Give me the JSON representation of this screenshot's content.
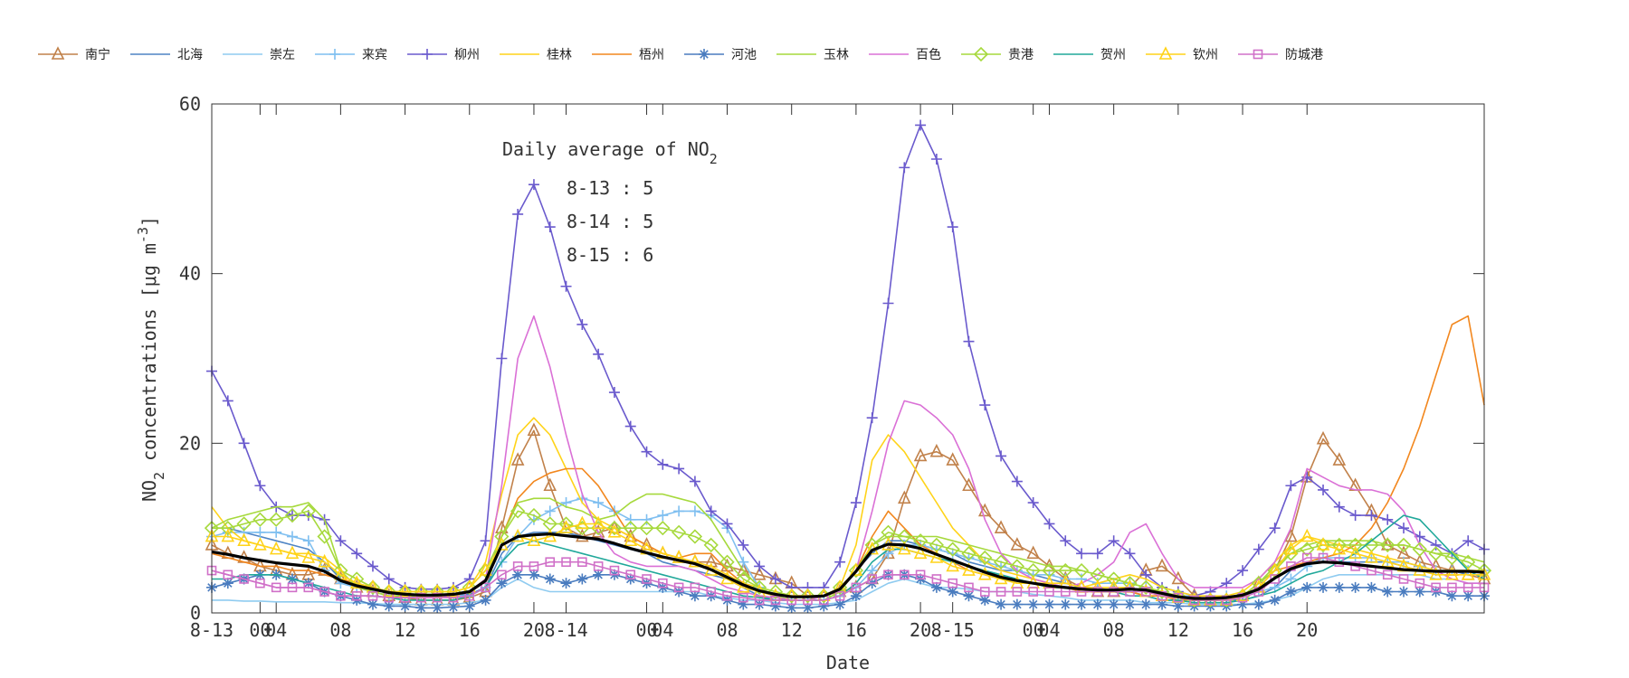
{
  "chart_data": {
    "type": "line",
    "xlabel": "Date",
    "ylabel": "NO",
    "ylabel_sub": "2",
    "ylabel_tail": " concentrations [μg m",
    "ylabel_sup": "-3",
    "ylabel_end": "]",
    "ylim": [
      0,
      60
    ],
    "y_ticks": [
      "0",
      "20",
      "40",
      "60"
    ],
    "x_ticks": [
      "8-13",
      "00",
      "04",
      "08",
      "12",
      "16",
      "20",
      "8-14",
      "00",
      "04",
      "08",
      "12",
      "16",
      "20",
      "8-15",
      "00",
      "04",
      "08",
      "12",
      "16",
      "20"
    ],
    "x_tick_hours": [
      0,
      3,
      4,
      8,
      12,
      16,
      20,
      22,
      27,
      28,
      32,
      36,
      40,
      44,
      46,
      51,
      52,
      56,
      60,
      64,
      68
    ],
    "x_range_hours": [
      0,
      79
    ],
    "annotation": {
      "title": "Daily average of NO",
      "title_sub": "2",
      "lines": [
        "8-13 : 5",
        "8-14 : 5",
        "8-15 : 6"
      ]
    },
    "series": [
      {
        "name": "南宁",
        "color": "#c1814a",
        "marker": "triangle",
        "values": [
          8,
          7,
          6.5,
          5.5,
          5,
          4.5,
          4.5,
          5,
          4,
          3,
          2.5,
          2,
          1.8,
          1.5,
          1.5,
          1.5,
          1.8,
          2.5,
          10,
          18,
          21.5,
          15,
          10,
          9,
          9.5,
          10,
          9,
          8,
          7,
          6.5,
          6,
          6,
          5.5,
          5,
          4.5,
          4,
          3.5,
          2,
          2,
          2.5,
          3,
          4,
          7,
          13.5,
          18.5,
          19,
          18,
          15,
          12,
          10,
          8,
          7,
          5.5,
          4,
          3,
          2.5,
          2.5,
          3,
          5,
          5.5,
          4,
          2,
          1.5,
          1.5,
          2,
          3.5,
          5,
          9,
          16,
          20.5,
          18,
          15,
          12,
          8,
          7,
          6,
          5.5,
          5,
          4.5,
          4
        ]
      },
      {
        "name": "北海",
        "color": "#4e84c4",
        "marker": "none",
        "values": [
          10,
          10,
          9.5,
          9,
          8.5,
          8,
          7.5,
          6,
          4,
          3,
          2.5,
          2,
          2,
          1.8,
          1.8,
          2,
          2.2,
          3,
          7,
          9,
          9.5,
          9.5,
          9.5,
          9,
          8.5,
          8,
          7.5,
          7,
          6,
          5.5,
          5,
          4.5,
          4,
          3,
          2,
          1.5,
          1.5,
          1.5,
          2,
          3,
          5,
          7,
          8.5,
          8.5,
          8,
          7.5,
          7,
          6,
          5.5,
          5,
          5,
          4.5,
          4,
          3.5,
          3,
          3,
          2.5,
          2.5,
          2,
          1.5,
          1.5,
          1.5,
          1.5,
          1.5,
          1.5,
          2,
          3,
          5,
          6,
          6.5,
          6,
          6,
          6,
          6,
          5.5,
          5,
          5,
          5,
          4.5,
          4.5
        ]
      },
      {
        "name": "崇左",
        "color": "#8fcbf0",
        "marker": "none",
        "values": [
          1.5,
          1.5,
          1.4,
          1.4,
          1.3,
          1.3,
          1.3,
          1.3,
          1.2,
          1.2,
          1.1,
          1,
          1,
          1,
          1,
          1,
          1.2,
          1.5,
          3,
          4,
          3,
          2.5,
          2.5,
          2.5,
          2.5,
          2.5,
          2.5,
          2.5,
          2.5,
          2.5,
          2.5,
          2,
          1.8,
          1.5,
          1.5,
          1.2,
          1,
          1,
          1,
          1.2,
          1.5,
          2.5,
          3.5,
          4,
          3.5,
          3,
          3,
          2.8,
          2.5,
          2.5,
          2.5,
          2.2,
          2,
          1.8,
          1.5,
          1.5,
          1.5,
          1.5,
          1.2,
          1.2,
          1.2,
          1,
          1,
          1,
          1,
          1.2,
          1.5,
          2,
          3,
          4,
          4.5,
          4.5,
          4.5,
          4.5,
          4.5,
          4.5,
          4,
          4,
          3.5,
          3.5
        ]
      },
      {
        "name": "来宾",
        "color": "#7fbff0",
        "marker": "plus",
        "values": [
          9,
          9.5,
          9.5,
          9.5,
          9.5,
          9,
          8.5,
          5,
          3.5,
          3,
          2.5,
          2,
          2,
          2,
          2,
          2,
          2,
          3,
          6,
          9,
          11,
          12,
          13,
          13.5,
          13,
          12,
          11,
          11,
          11.5,
          12,
          12,
          11.5,
          10,
          6,
          3,
          2,
          1.5,
          1.5,
          1.5,
          2,
          3,
          5,
          7,
          8,
          8,
          7.5,
          7,
          6.5,
          6,
          5.5,
          5,
          4.5,
          4.5,
          4,
          4,
          3.5,
          3.5,
          3.5,
          3,
          2.5,
          2,
          2,
          2,
          2,
          2,
          2.5,
          3,
          4,
          5.5,
          6.5,
          6.5,
          6.5,
          6.5,
          6,
          6,
          5.5,
          5,
          5,
          5,
          5
        ]
      },
      {
        "name": "柳州",
        "color": "#6a5acd",
        "marker": "plus",
        "values": [
          28.5,
          25,
          20,
          15,
          12.5,
          11.5,
          11.5,
          11,
          8.5,
          7,
          5.5,
          4,
          3,
          2.8,
          2.8,
          3,
          4,
          8.5,
          30,
          47,
          50.5,
          45.5,
          38.5,
          34,
          30.5,
          26,
          22,
          19,
          17.5,
          17,
          15.5,
          12,
          10.5,
          8,
          5.5,
          4,
          3,
          3,
          3,
          6,
          13,
          23,
          36.5,
          52.5,
          57.5,
          53.5,
          45.5,
          32,
          24.5,
          18.5,
          15.5,
          13,
          10.5,
          8.5,
          7,
          7,
          8.5,
          7,
          4.5,
          3,
          2.5,
          2,
          2.5,
          3.5,
          5,
          7.5,
          10,
          15,
          16,
          14.5,
          12.5,
          11.5,
          11.5,
          11,
          10,
          9,
          8,
          7,
          8.5,
          7.5
        ]
      },
      {
        "name": "桂林",
        "color": "#ffd319",
        "marker": "none",
        "values": [
          12.5,
          10,
          8.5,
          8,
          7.5,
          7,
          7,
          6.5,
          5,
          4,
          3,
          2.5,
          2.5,
          2.5,
          2.5,
          2.5,
          3,
          6,
          14,
          21,
          23,
          21,
          17,
          13,
          11,
          10,
          9,
          8,
          7,
          6.5,
          6,
          5.5,
          4.5,
          3.5,
          3,
          2.5,
          2,
          2,
          2,
          3,
          8,
          18,
          21,
          19,
          16,
          13,
          10,
          8,
          6,
          5,
          4.5,
          4,
          3.5,
          3,
          3,
          3.5,
          4,
          4.5,
          4,
          3,
          2.5,
          2,
          2,
          2,
          2.5,
          4,
          6,
          8,
          9,
          8.5,
          8,
          7.5,
          7,
          6.5,
          6,
          5.5,
          5,
          5,
          5,
          5
        ]
      },
      {
        "name": "梧州",
        "color": "#f2871e",
        "marker": "none",
        "values": [
          7,
          6.5,
          6,
          5.5,
          5.5,
          5,
          5,
          4.5,
          4,
          3.5,
          3,
          2.5,
          2.2,
          2,
          2,
          2,
          2.5,
          4,
          9,
          13.5,
          15.5,
          16.5,
          17,
          17,
          15,
          12,
          9,
          8,
          7,
          6.5,
          7,
          7,
          5,
          3.5,
          2.5,
          2,
          2,
          2,
          2,
          3,
          5,
          9,
          12,
          10,
          8,
          7,
          6,
          5,
          4.5,
          4,
          3.5,
          3.5,
          3,
          3,
          2.5,
          2.5,
          2.5,
          2.5,
          2,
          2,
          1.5,
          1.5,
          1.5,
          1.5,
          2,
          3,
          5,
          5.5,
          6,
          6.5,
          7,
          8,
          10,
          13,
          17,
          22,
          28,
          34,
          35,
          24.5
        ]
      },
      {
        "name": "河池",
        "color": "#4a7cbf",
        "marker": "asterisk",
        "values": [
          3,
          3.5,
          4,
          4.5,
          4.5,
          4,
          3.5,
          2.5,
          2,
          1.5,
          1,
          0.8,
          0.8,
          0.6,
          0.6,
          0.7,
          0.8,
          1.5,
          3.5,
          4.5,
          4.5,
          4,
          3.5,
          4,
          4.5,
          4.5,
          4,
          3.5,
          3,
          2.5,
          2,
          2,
          1.5,
          1,
          1,
          0.8,
          0.6,
          0.6,
          0.8,
          1,
          2,
          3.5,
          4.5,
          4.5,
          4,
          3,
          2.5,
          2,
          1.5,
          1,
          1,
          1,
          1,
          1,
          1,
          1,
          1,
          1,
          1,
          1,
          0.8,
          0.8,
          0.8,
          0.8,
          1,
          1,
          1.5,
          2.5,
          3,
          3,
          3,
          3,
          3,
          2.5,
          2.5,
          2.5,
          2.5,
          2,
          2,
          2
        ]
      },
      {
        "name": "玉林",
        "color": "#a6d93c",
        "marker": "none",
        "values": [
          10,
          11,
          11.5,
          12,
          12.5,
          12.5,
          13,
          11,
          5,
          3,
          2.5,
          2,
          2,
          2,
          2,
          2,
          2.5,
          4,
          9,
          13,
          13.5,
          13.5,
          12.5,
          12,
          11,
          11.5,
          13,
          14,
          14,
          13.5,
          13,
          11,
          8,
          5,
          3,
          2,
          1.5,
          1.5,
          1.5,
          2.5,
          5,
          8,
          9,
          9,
          9,
          9,
          8.5,
          8,
          7.5,
          7,
          6.5,
          6,
          5.5,
          5.5,
          5,
          4.5,
          4,
          3.5,
          3,
          2.5,
          2,
          1.5,
          1.5,
          1.5,
          2,
          3.5,
          5.5,
          7,
          8,
          8.5,
          8.5,
          8.5,
          8.5,
          8,
          8,
          7.5,
          7,
          7,
          6.5,
          6
        ]
      },
      {
        "name": "百色",
        "color": "#da70d6",
        "marker": "none",
        "values": [
          5,
          4.5,
          4,
          3.5,
          3,
          3,
          3,
          2.5,
          2,
          2,
          2,
          1.8,
          1.8,
          1.8,
          1.8,
          2,
          2.5,
          4,
          15,
          30,
          35,
          29,
          21,
          14,
          9.5,
          7,
          6,
          5.5,
          5.5,
          5.5,
          5,
          4,
          3,
          2.5,
          2,
          1.8,
          1.5,
          1.5,
          2,
          3,
          5,
          12,
          20,
          25,
          24.5,
          23,
          21,
          17,
          11,
          7,
          5,
          4,
          3.5,
          3,
          3.5,
          4.5,
          6,
          9.5,
          10.5,
          7,
          4,
          3,
          3,
          3,
          3,
          4,
          6,
          10,
          17,
          16,
          15,
          14.5,
          14.5,
          14,
          12,
          8,
          5,
          4,
          3.5,
          3.5
        ]
      },
      {
        "name": "贵港",
        "color": "#a6d93c",
        "marker": "diamond",
        "values": [
          10,
          10,
          10.5,
          11,
          11,
          11.5,
          12,
          9,
          5,
          4,
          3,
          2.5,
          2.5,
          2.5,
          2.5,
          2.5,
          3,
          5,
          9,
          12,
          11.5,
          10.5,
          10.5,
          10,
          10,
          10,
          10,
          10,
          10,
          9.5,
          9,
          8,
          6,
          4,
          3,
          2.5,
          2,
          2,
          2,
          3,
          5,
          8,
          9.5,
          9,
          8.5,
          8,
          7.5,
          7,
          6.5,
          6,
          5.5,
          5,
          5,
          5,
          5,
          4.5,
          4,
          3.5,
          3,
          2.5,
          2,
          1.5,
          1.5,
          1.5,
          2,
          3.5,
          5,
          7,
          7.5,
          8,
          8,
          8,
          8,
          8,
          8,
          7.5,
          7,
          6.5,
          6,
          5
        ]
      },
      {
        "name": "贺州",
        "color": "#20a89a",
        "marker": "none",
        "values": [
          4,
          4,
          4.5,
          4.5,
          4.5,
          4,
          3.5,
          3,
          2.5,
          2,
          2,
          1.8,
          1.5,
          1.5,
          1.5,
          1.5,
          2,
          3,
          6,
          8,
          8.5,
          8,
          7.5,
          7,
          6.5,
          6,
          5.5,
          5,
          4.5,
          4,
          3.5,
          3,
          2.5,
          2,
          1.8,
          1.5,
          1.5,
          1.5,
          1.5,
          2,
          3.5,
          6,
          7.5,
          7.5,
          7,
          6.5,
          6,
          5.5,
          5,
          4.5,
          4,
          3.5,
          3,
          3,
          3,
          2.5,
          2.5,
          2,
          2,
          1.5,
          1.5,
          1.2,
          1.2,
          1.2,
          1.5,
          2,
          2.5,
          3.5,
          4.5,
          5,
          6,
          7,
          8.5,
          10,
          11.5,
          11,
          9,
          7,
          5,
          4
        ]
      },
      {
        "name": "钦州",
        "color": "#ffd319",
        "marker": "triangle",
        "values": [
          9,
          9,
          8.5,
          8,
          7.5,
          7,
          6.5,
          6,
          4.5,
          3.5,
          3,
          2.5,
          2.5,
          2.5,
          2.5,
          2.5,
          3,
          5,
          8,
          9,
          8.5,
          9,
          10,
          10.5,
          10.5,
          9.5,
          8.5,
          7.5,
          7,
          6.5,
          6,
          5,
          4,
          3,
          2.5,
          2,
          2,
          2,
          2,
          3,
          5,
          7.5,
          8,
          7.5,
          7,
          6.5,
          5.5,
          5,
          4.5,
          4,
          3.5,
          3.5,
          3.5,
          3.5,
          3,
          3,
          3,
          3,
          2.5,
          2,
          1.8,
          1.5,
          1.5,
          1.5,
          2,
          3,
          5,
          7.5,
          9,
          8,
          7.5,
          7,
          6.5,
          6,
          5.5,
          5,
          4.5,
          4.5,
          4.5,
          4.5
        ]
      },
      {
        "name": "防城港",
        "color": "#d070c8",
        "marker": "square",
        "values": [
          5,
          4.5,
          4,
          3.5,
          3,
          3,
          3,
          2.5,
          2,
          2,
          2,
          1.8,
          1.8,
          1.8,
          1.8,
          1.8,
          2,
          3,
          4.5,
          5.5,
          5.5,
          6,
          6,
          6,
          5.5,
          5,
          4.5,
          4,
          3.5,
          3,
          3,
          2.5,
          2,
          1.8,
          1.5,
          1.5,
          1.5,
          1.5,
          1.5,
          2,
          3,
          4,
          4.5,
          4.5,
          4.5,
          4,
          3.5,
          3,
          2.5,
          2.5,
          2.5,
          2.5,
          2.5,
          2.5,
          2.5,
          2.5,
          2.5,
          2.5,
          2.5,
          2,
          1.8,
          1.5,
          1.5,
          1.5,
          1.8,
          2.5,
          4,
          5.5,
          6.5,
          6.5,
          6,
          5.5,
          5,
          4.5,
          4,
          3.5,
          3,
          3,
          3,
          3
        ]
      },
      {
        "name": "",
        "color": "#000000",
        "marker": "none",
        "values": [
          7.2,
          6.9,
          6.5,
          6.2,
          5.9,
          5.7,
          5.5,
          4.9,
          3.8,
          3.2,
          2.8,
          2.4,
          2.2,
          2.1,
          2.1,
          2.2,
          2.5,
          3.8,
          8,
          9,
          9.2,
          9.3,
          9.1,
          8.9,
          8.7,
          8.2,
          7.6,
          7.1,
          6.6,
          6.2,
          5.8,
          5.1,
          4.2,
          3.3,
          2.6,
          2.2,
          1.9,
          1.9,
          2,
          2.8,
          4.9,
          7.4,
          8.1,
          8,
          7.6,
          6.9,
          6.2,
          5.5,
          4.8,
          4.2,
          3.8,
          3.5,
          3.2,
          3,
          2.8,
          2.7,
          2.7,
          2.8,
          2.7,
          2.3,
          1.9,
          1.7,
          1.7,
          1.8,
          2.1,
          2.8,
          4.1,
          5.2,
          5.8,
          6,
          5.9,
          5.7,
          5.5,
          5.3,
          5.1,
          5,
          4.9,
          4.9,
          4.9,
          4.8
        ]
      }
    ]
  }
}
